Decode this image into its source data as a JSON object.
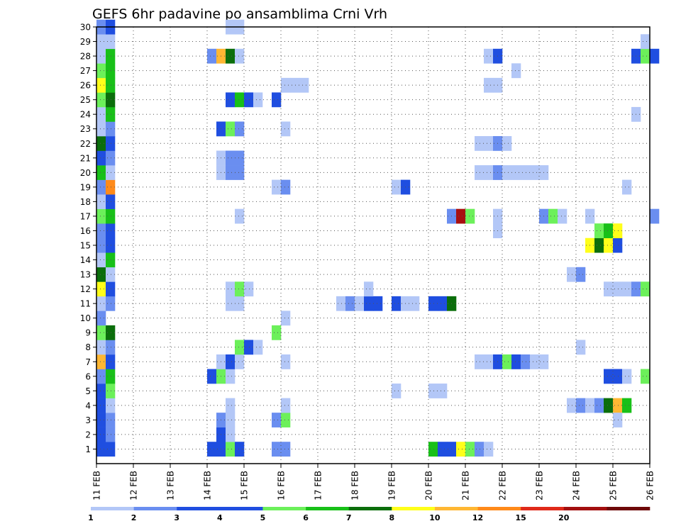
{
  "chart_data": {
    "type": "heatmap",
    "title": "GEFS 6hr padavine po ansamblima Crni Vrh",
    "xlabel": "",
    "ylabel": "",
    "x_tick_labels": [
      "11 FEB",
      "12 FEB",
      "13 FEB",
      "14 FEB",
      "15 FEB",
      "16 FEB",
      "17 FEB",
      "18 FEB",
      "19 FEB",
      "20 FEB",
      "21 FEB",
      "22 FEB",
      "23 FEB",
      "24 FEB",
      "25 FEB",
      "26 FEB"
    ],
    "y_tick_labels": [
      "1",
      "2",
      "3",
      "4",
      "5",
      "6",
      "7",
      "8",
      "9",
      "10",
      "11",
      "12",
      "13",
      "14",
      "15",
      "16",
      "17",
      "18",
      "19",
      "20",
      "21",
      "22",
      "23",
      "24",
      "25",
      "26",
      "27",
      "28",
      "29",
      "30"
    ],
    "time_steps_per_day": 4,
    "xlim_days": [
      0,
      15
    ],
    "ylim": [
      0,
      30
    ],
    "grid": true,
    "colorbar": {
      "placement": "bottom",
      "levels": [
        "1",
        "2",
        "3",
        "4",
        "5",
        "6",
        "7",
        "8",
        "10",
        "12",
        "15",
        "20"
      ],
      "colors": [
        "#b3c7f7",
        "#6a8ef0",
        "#1f4ee0",
        "#1f4ee0",
        "#6cf05a",
        "#18c018",
        "#0b6e0b",
        "#ffff1a",
        "#ffb733",
        "#ff8a1a",
        "#e02a1a",
        "#a30f0f",
        "#6e0808"
      ]
    },
    "color_scale": [
      "#b3c7f7",
      "#6a8ef0",
      "#1f4ee0",
      "#6cf05a",
      "#18c018",
      "#0b6e0b",
      "#ffff1a",
      "#ffb733",
      "#ff8a1a",
      "#a80f0f"
    ],
    "cells": [
      [
        0,
        0,
        2
      ],
      [
        1,
        0,
        2
      ],
      [
        0,
        1,
        2
      ],
      [
        1,
        1,
        1
      ],
      [
        0,
        2,
        2
      ],
      [
        1,
        2,
        1
      ],
      [
        0,
        3,
        2
      ],
      [
        1,
        3,
        0
      ],
      [
        0,
        4,
        2
      ],
      [
        1,
        4,
        3
      ],
      [
        0,
        5,
        1
      ],
      [
        1,
        5,
        4
      ],
      [
        0,
        6,
        7
      ],
      [
        1,
        6,
        2
      ],
      [
        0,
        7,
        0
      ],
      [
        1,
        7,
        1
      ],
      [
        0,
        8,
        3
      ],
      [
        1,
        8,
        5
      ],
      [
        0,
        9,
        1
      ],
      [
        0,
        10,
        0
      ],
      [
        1,
        10,
        1
      ],
      [
        0,
        11,
        6
      ],
      [
        1,
        11,
        2
      ],
      [
        0,
        12,
        5
      ],
      [
        1,
        12,
        0
      ],
      [
        0,
        13,
        0
      ],
      [
        1,
        13,
        4
      ],
      [
        0,
        14,
        1
      ],
      [
        1,
        14,
        2
      ],
      [
        0,
        15,
        1
      ],
      [
        1,
        15,
        2
      ],
      [
        0,
        16,
        3
      ],
      [
        1,
        16,
        4
      ],
      [
        0,
        17,
        0
      ],
      [
        1,
        17,
        2
      ],
      [
        0,
        18,
        1
      ],
      [
        1,
        18,
        8
      ],
      [
        0,
        19,
        4
      ],
      [
        1,
        19,
        0
      ],
      [
        0,
        20,
        2
      ],
      [
        1,
        20,
        1
      ],
      [
        0,
        21,
        5
      ],
      [
        1,
        21,
        2
      ],
      [
        0,
        22,
        0
      ],
      [
        1,
        22,
        1
      ],
      [
        0,
        23,
        0
      ],
      [
        1,
        23,
        4
      ],
      [
        0,
        24,
        3
      ],
      [
        1,
        24,
        5
      ],
      [
        0,
        25,
        6
      ],
      [
        1,
        25,
        4
      ],
      [
        0,
        26,
        3
      ],
      [
        1,
        26,
        4
      ],
      [
        0,
        27,
        0
      ],
      [
        1,
        27,
        4
      ],
      [
        0,
        28,
        0
      ],
      [
        1,
        28,
        0
      ],
      [
        0,
        29,
        1
      ],
      [
        1,
        29,
        2
      ],
      [
        12,
        0,
        2
      ],
      [
        13,
        0,
        2
      ],
      [
        14,
        0,
        3
      ],
      [
        15,
        0,
        2
      ],
      [
        13,
        1,
        2
      ],
      [
        14,
        1,
        0
      ],
      [
        13,
        2,
        1
      ],
      [
        14,
        2,
        0
      ],
      [
        14,
        3,
        0
      ],
      [
        12,
        5,
        2
      ],
      [
        13,
        5,
        3
      ],
      [
        14,
        5,
        0
      ],
      [
        13,
        6,
        0
      ],
      [
        14,
        6,
        2
      ],
      [
        15,
        6,
        0
      ],
      [
        15,
        7,
        3
      ],
      [
        16,
        7,
        2
      ],
      [
        17,
        7,
        0
      ],
      [
        14,
        10,
        0
      ],
      [
        15,
        10,
        0
      ],
      [
        14,
        11,
        0
      ],
      [
        15,
        11,
        3
      ],
      [
        16,
        11,
        0
      ],
      [
        15,
        16,
        0
      ],
      [
        13,
        19,
        0
      ],
      [
        14,
        19,
        1
      ],
      [
        15,
        19,
        1
      ],
      [
        13,
        20,
        0
      ],
      [
        14,
        20,
        1
      ],
      [
        15,
        20,
        1
      ],
      [
        13,
        22,
        2
      ],
      [
        14,
        22,
        3
      ],
      [
        15,
        22,
        1
      ],
      [
        14,
        24,
        2
      ],
      [
        15,
        24,
        4
      ],
      [
        16,
        24,
        2
      ],
      [
        17,
        24,
        0
      ],
      [
        12,
        27,
        1
      ],
      [
        13,
        27,
        7
      ],
      [
        14,
        27,
        5
      ],
      [
        15,
        27,
        0
      ],
      [
        14,
        29,
        0
      ],
      [
        15,
        29,
        0
      ],
      [
        19,
        0,
        1
      ],
      [
        20,
        0,
        1
      ],
      [
        19,
        2,
        1
      ],
      [
        20,
        2,
        3
      ],
      [
        20,
        3,
        0
      ],
      [
        20,
        6,
        0
      ],
      [
        19,
        8,
        3
      ],
      [
        20,
        9,
        0
      ],
      [
        19,
        18,
        0
      ],
      [
        20,
        18,
        1
      ],
      [
        19,
        24,
        2
      ],
      [
        20,
        22,
        0
      ],
      [
        20,
        25,
        0
      ],
      [
        21,
        25,
        0
      ],
      [
        22,
        25,
        0
      ],
      [
        26,
        10,
        0
      ],
      [
        27,
        10,
        1
      ],
      [
        28,
        10,
        0
      ],
      [
        29,
        10,
        2
      ],
      [
        30,
        10,
        2
      ],
      [
        29,
        11,
        0
      ],
      [
        32,
        10,
        2
      ],
      [
        33,
        10,
        0
      ],
      [
        34,
        10,
        0
      ],
      [
        32,
        4,
        0
      ],
      [
        32,
        18,
        0
      ],
      [
        33,
        18,
        2
      ],
      [
        36,
        0,
        4
      ],
      [
        37,
        0,
        2
      ],
      [
        38,
        0,
        2
      ],
      [
        39,
        0,
        6
      ],
      [
        40,
        0,
        3
      ],
      [
        41,
        0,
        1
      ],
      [
        42,
        0,
        0
      ],
      [
        36,
        4,
        0
      ],
      [
        37,
        4,
        0
      ],
      [
        36,
        10,
        2
      ],
      [
        37,
        10,
        2
      ],
      [
        38,
        10,
        5
      ],
      [
        38,
        16,
        1
      ],
      [
        39,
        16,
        9
      ],
      [
        40,
        16,
        3
      ],
      [
        43,
        16,
        0
      ],
      [
        41,
        6,
        0
      ],
      [
        42,
        6,
        0
      ],
      [
        43,
        6,
        2
      ],
      [
        44,
        6,
        3
      ],
      [
        45,
        6,
        2
      ],
      [
        46,
        6,
        1
      ],
      [
        47,
        6,
        0
      ],
      [
        48,
        6,
        0
      ],
      [
        41,
        19,
        0
      ],
      [
        42,
        19,
        0
      ],
      [
        43,
        19,
        1
      ],
      [
        44,
        19,
        0
      ],
      [
        45,
        19,
        0
      ],
      [
        46,
        19,
        0
      ],
      [
        47,
        19,
        0
      ],
      [
        48,
        19,
        0
      ],
      [
        41,
        21,
        0
      ],
      [
        42,
        21,
        0
      ],
      [
        43,
        21,
        1
      ],
      [
        44,
        21,
        0
      ],
      [
        43,
        15,
        0
      ],
      [
        42,
        25,
        0
      ],
      [
        43,
        25,
        0
      ],
      [
        45,
        26,
        0
      ],
      [
        42,
        27,
        0
      ],
      [
        43,
        27,
        2
      ],
      [
        48,
        16,
        1
      ],
      [
        49,
        16,
        3
      ],
      [
        50,
        16,
        0
      ],
      [
        51,
        12,
        0
      ],
      [
        52,
        12,
        1
      ],
      [
        52,
        7,
        0
      ],
      [
        53,
        16,
        0
      ],
      [
        51,
        3,
        0
      ],
      [
        52,
        3,
        1
      ],
      [
        53,
        3,
        0
      ],
      [
        54,
        3,
        1
      ],
      [
        55,
        3,
        5
      ],
      [
        56,
        3,
        7
      ],
      [
        57,
        3,
        4
      ],
      [
        56,
        2,
        0
      ],
      [
        53,
        14,
        6
      ],
      [
        54,
        14,
        5
      ],
      [
        55,
        14,
        6
      ],
      [
        56,
        14,
        2
      ],
      [
        54,
        15,
        3
      ],
      [
        55,
        15,
        4
      ],
      [
        56,
        15,
        6
      ],
      [
        55,
        5,
        2
      ],
      [
        56,
        5,
        2
      ],
      [
        57,
        5,
        0
      ],
      [
        59,
        5,
        3
      ],
      [
        55,
        11,
        0
      ],
      [
        56,
        11,
        0
      ],
      [
        57,
        11,
        0
      ],
      [
        58,
        11,
        1
      ],
      [
        59,
        11,
        3
      ],
      [
        57,
        18,
        0
      ],
      [
        58,
        23,
        0
      ],
      [
        58,
        27,
        2
      ],
      [
        59,
        27,
        3
      ],
      [
        60,
        27,
        2
      ],
      [
        59,
        28,
        0
      ],
      [
        60,
        16,
        1
      ]
    ]
  }
}
